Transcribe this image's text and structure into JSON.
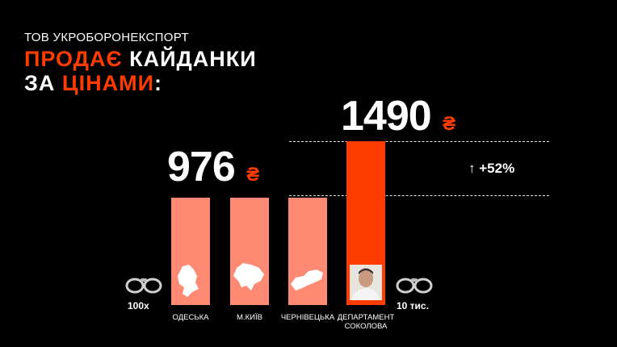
{
  "header": {
    "subtitle": "ТОВ УКРОБОРОНЕКСПОРТ",
    "line1_accent": "ПРОДАЄ",
    "line1_rest": " КАЙДАНКИ",
    "line2_start": "ЗА ",
    "line2_accent": "ЦІНАМИ",
    "line2_end": ":"
  },
  "chart_data": {
    "type": "bar",
    "categories": [
      "ОДЕСЬКА",
      "М.КИЇВ",
      "ЧЕРНІВЕЦЬКА",
      "ДЕПАРТАМЕНТ\nСОКОЛОВА"
    ],
    "values": [
      976,
      976,
      976,
      1490
    ],
    "value_labels": {
      "shared": "976",
      "highlight": "1490"
    },
    "currency": "₴",
    "increase_label": "+52%",
    "colors": {
      "base": "#ff8a73",
      "highlight": "#ff3c00"
    },
    "left_quantity": "100х",
    "right_quantity": "10 тис."
  },
  "icons": [
    "handcuffs-icon",
    "odesa-region-icon",
    "kyiv-region-icon",
    "chernivtsi-region-icon",
    "person-photo"
  ]
}
